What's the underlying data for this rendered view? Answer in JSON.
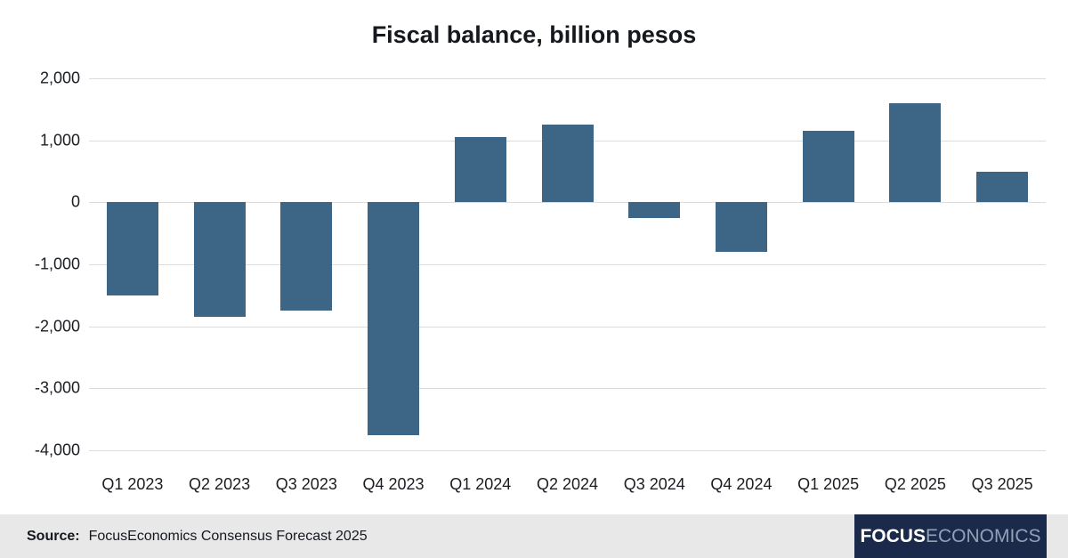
{
  "title": "Fiscal balance, billion pesos",
  "footer": {
    "source_label": "Source:",
    "source_text": "FocusEconomics Consensus Forecast 2025",
    "logo": {
      "part1": "FOCUS",
      "part2": "ECONOMICS"
    }
  },
  "colors": {
    "bar": "#3c6586",
    "grid": "#dcdcdc",
    "footer_bg": "#e8e8e8",
    "logo_bg": "#1b2a4a",
    "text": "#1a1d22"
  },
  "chart_data": {
    "type": "bar",
    "title": "Fiscal balance, billion pesos",
    "categories": [
      "Q1 2023",
      "Q2 2023",
      "Q3 2023",
      "Q4 2023",
      "Q1 2024",
      "Q2 2024",
      "Q3 2024",
      "Q4 2024",
      "Q1 2025",
      "Q2 2025",
      "Q3 2025"
    ],
    "values": [
      -1500,
      -1850,
      -1750,
      -3750,
      1050,
      1250,
      -250,
      -800,
      1150,
      1600,
      500
    ],
    "xlabel": "",
    "ylabel": "",
    "ylim": [
      -4000,
      2000
    ],
    "ytick_step": 1000,
    "grid": true,
    "legend": false
  }
}
